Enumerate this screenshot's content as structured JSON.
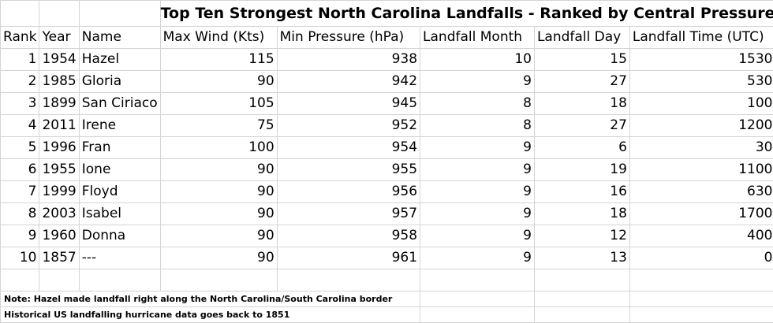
{
  "title": "Top Ten Strongest North Carolina Landfalls - Ranked by Central Pressure",
  "headers": [
    "Rank",
    "Year",
    "Name",
    "Max Wind (Kts)",
    "Min Pressure (hPa)",
    "Landfall Month",
    "Landfall Day",
    "Landfall Time (UTC)"
  ],
  "rows": [
    [
      "1",
      "1954",
      "Hazel",
      "115",
      "938",
      "10",
      "15",
      "1530"
    ],
    [
      "2",
      "1985",
      "Gloria",
      "90",
      "942",
      "9",
      "27",
      "530"
    ],
    [
      "3",
      "1899",
      "San Ciriaco",
      "105",
      "945",
      "8",
      "18",
      "100"
    ],
    [
      "4",
      "2011",
      "Irene",
      "75",
      "952",
      "8",
      "27",
      "1200"
    ],
    [
      "5",
      "1996",
      "Fran",
      "100",
      "954",
      "9",
      "6",
      "30"
    ],
    [
      "6",
      "1955",
      "Ione",
      "90",
      "955",
      "9",
      "19",
      "1100"
    ],
    [
      "7",
      "1999",
      "Floyd",
      "90",
      "956",
      "9",
      "16",
      "630"
    ],
    [
      "8",
      "2003",
      "Isabel",
      "90",
      "957",
      "9",
      "18",
      "1700"
    ],
    [
      "9",
      "1960",
      "Donna",
      "90",
      "958",
      "9",
      "12",
      "400"
    ],
    [
      "10",
      "1857",
      "---",
      "90",
      "961",
      "9",
      "13",
      "0"
    ]
  ],
  "notes": [
    "Note: Hazel made landfall right along the North Carolina/South Carolina border",
    "Historical US landfalling hurricane data goes back to 1851"
  ]
}
